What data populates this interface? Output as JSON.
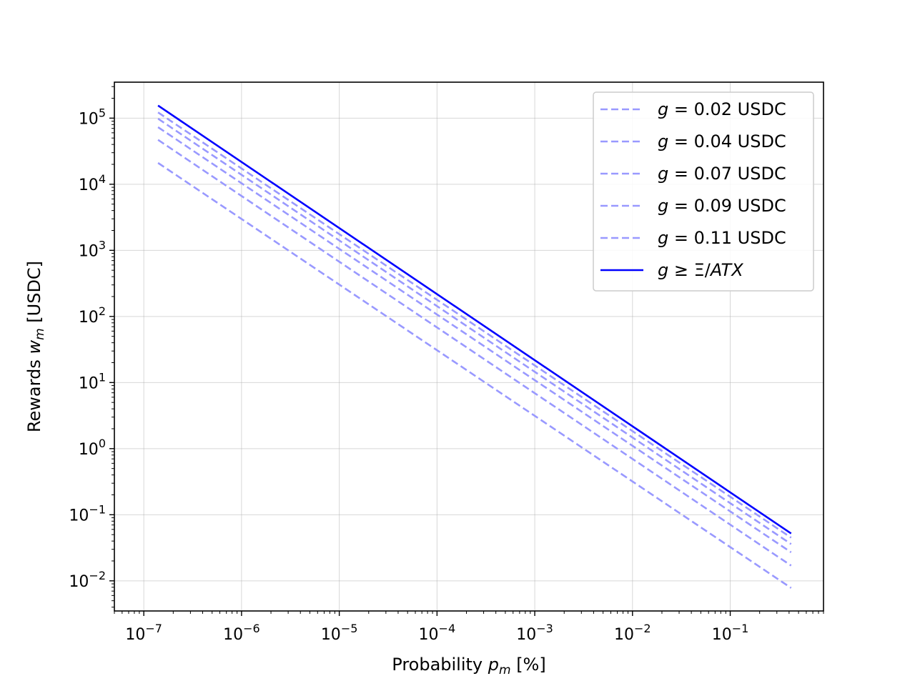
{
  "chart_data": {
    "type": "line",
    "title": "",
    "xlabel": "Probability p_m [%]",
    "xlabel_parts": {
      "prefix": "Probability ",
      "var": "p",
      "sub": "m",
      "suffix": " [%]"
    },
    "ylabel": "Rewards w_m [USDC]",
    "ylabel_parts": {
      "prefix": "Rewards ",
      "var": "w",
      "sub": "m",
      "suffix": " [USDC]"
    },
    "xscale": "log",
    "yscale": "log",
    "xlim": [
      5e-08,
      0.9
    ],
    "ylim": [
      0.0035,
      350000
    ],
    "grid": true,
    "legend_position": "upper right",
    "x_ticks": [
      {
        "base": "10",
        "exp": "−7",
        "value": 1e-07
      },
      {
        "base": "10",
        "exp": "−6",
        "value": 1e-06
      },
      {
        "base": "10",
        "exp": "−5",
        "value": 1e-05
      },
      {
        "base": "10",
        "exp": "−4",
        "value": 0.0001
      },
      {
        "base": "10",
        "exp": "−3",
        "value": 0.001
      },
      {
        "base": "10",
        "exp": "−2",
        "value": 0.01
      },
      {
        "base": "10",
        "exp": "−1",
        "value": 0.1
      }
    ],
    "y_ticks": [
      {
        "base": "10",
        "exp": "−2",
        "value": 0.01
      },
      {
        "base": "10",
        "exp": "−1",
        "value": 0.1
      },
      {
        "base": "10",
        "exp": "0",
        "value": 1
      },
      {
        "base": "10",
        "exp": "1",
        "value": 10
      },
      {
        "base": "10",
        "exp": "2",
        "value": 100
      },
      {
        "base": "10",
        "exp": "3",
        "value": 1000
      },
      {
        "base": "10",
        "exp": "4",
        "value": 10000
      },
      {
        "base": "10",
        "exp": "5",
        "value": 100000
      }
    ],
    "series": [
      {
        "name": "g = 0.02 USDC",
        "name_var": "g",
        "name_rest": " = 0.02 USDC",
        "style": "dashed",
        "color": "#9999ff",
        "x": [
          1.4e-07,
          0.42
        ],
        "y": [
          21000,
          0.0078
        ]
      },
      {
        "name": "g = 0.04 USDC",
        "name_var": "g",
        "name_rest": " = 0.04 USDC",
        "style": "dashed",
        "color": "#9999ff",
        "x": [
          1.4e-07,
          0.42
        ],
        "y": [
          47000,
          0.017
        ]
      },
      {
        "name": "g = 0.07 USDC",
        "name_var": "g",
        "name_rest": " = 0.07 USDC",
        "style": "dashed",
        "color": "#9999ff",
        "x": [
          1.4e-07,
          0.42
        ],
        "y": [
          73000,
          0.027
        ]
      },
      {
        "name": "g = 0.09 USDC",
        "name_var": "g",
        "name_rest": " = 0.09 USDC",
        "style": "dashed",
        "color": "#9999ff",
        "x": [
          1.4e-07,
          0.42
        ],
        "y": [
          98000,
          0.036
        ]
      },
      {
        "name": "g = 0.11 USDC",
        "name_var": "g",
        "name_rest": " = 0.11 USDC",
        "style": "dashed",
        "color": "#9999ff",
        "x": [
          1.4e-07,
          0.42
        ],
        "y": [
          122000,
          0.045
        ]
      },
      {
        "name": "g ≥ Ξ/ATX",
        "name_var": "g",
        "name_rest": " ≥  Ξ/ATX",
        "style": "solid",
        "color": "#0000ff",
        "x": [
          1.4e-07,
          0.42
        ],
        "y": [
          155000,
          0.052
        ]
      }
    ]
  }
}
